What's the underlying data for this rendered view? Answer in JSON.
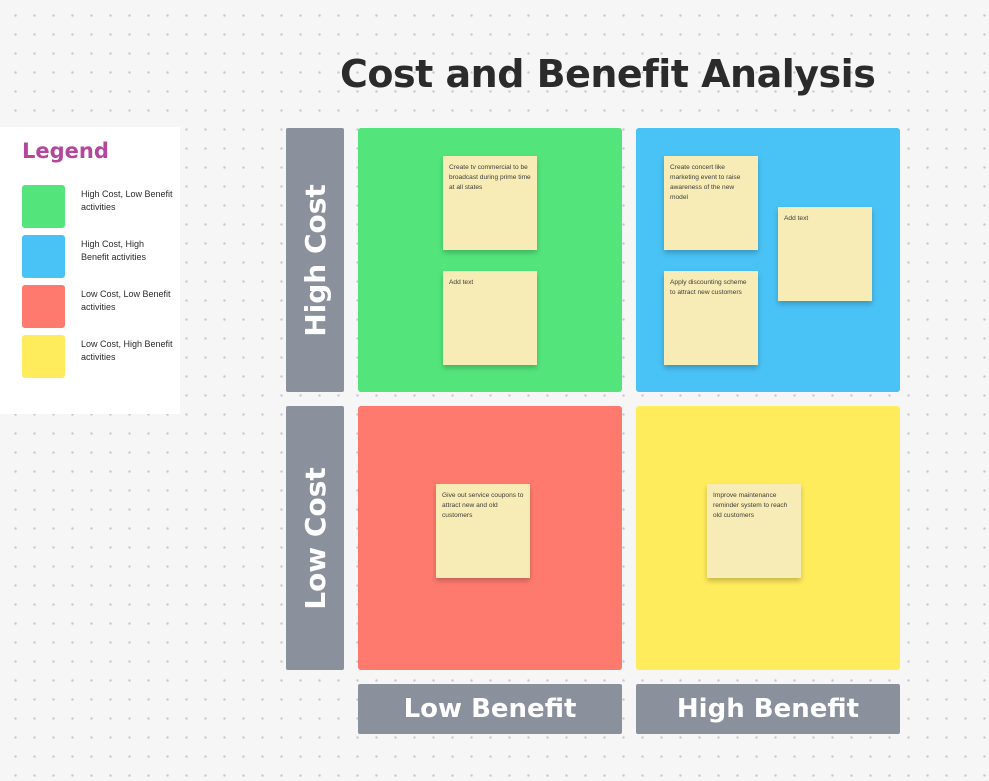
{
  "title": "Cost and Benefit Analysis",
  "legend": {
    "title": "Legend",
    "items": [
      {
        "label": "High Cost, Low Benefit activities",
        "color": "#53e57c"
      },
      {
        "label": "High Cost, High Benefit activities",
        "color": "#49c2f5"
      },
      {
        "label": "Low Cost, Low Benefit activities",
        "color": "#ff7a6e"
      },
      {
        "label": "Low Cost, High Benefit activities",
        "color": "#ffec5c"
      }
    ]
  },
  "axes": {
    "high_cost": "High Cost",
    "low_cost": "Low Cost",
    "low_benefit": "Low Benefit",
    "high_benefit": "High Benefit"
  },
  "quadrants": {
    "high_cost_low_benefit": {
      "color": "#53e57c",
      "notes": [
        "Create tv commercial to be broadcast during prime time at all states",
        "Add text"
      ]
    },
    "high_cost_high_benefit": {
      "color": "#49c2f5",
      "notes": [
        "Create concert like marketing event to raise awareness of the new model",
        "Add text",
        "Apply discounting scheme to attract new customers"
      ]
    },
    "low_cost_low_benefit": {
      "color": "#ff7a6e",
      "notes": [
        "Give out service coupons to attract new and old customers"
      ]
    },
    "low_cost_high_benefit": {
      "color": "#ffec5c",
      "notes": [
        "Improve maintenance reminder system to reach old customers"
      ]
    }
  }
}
